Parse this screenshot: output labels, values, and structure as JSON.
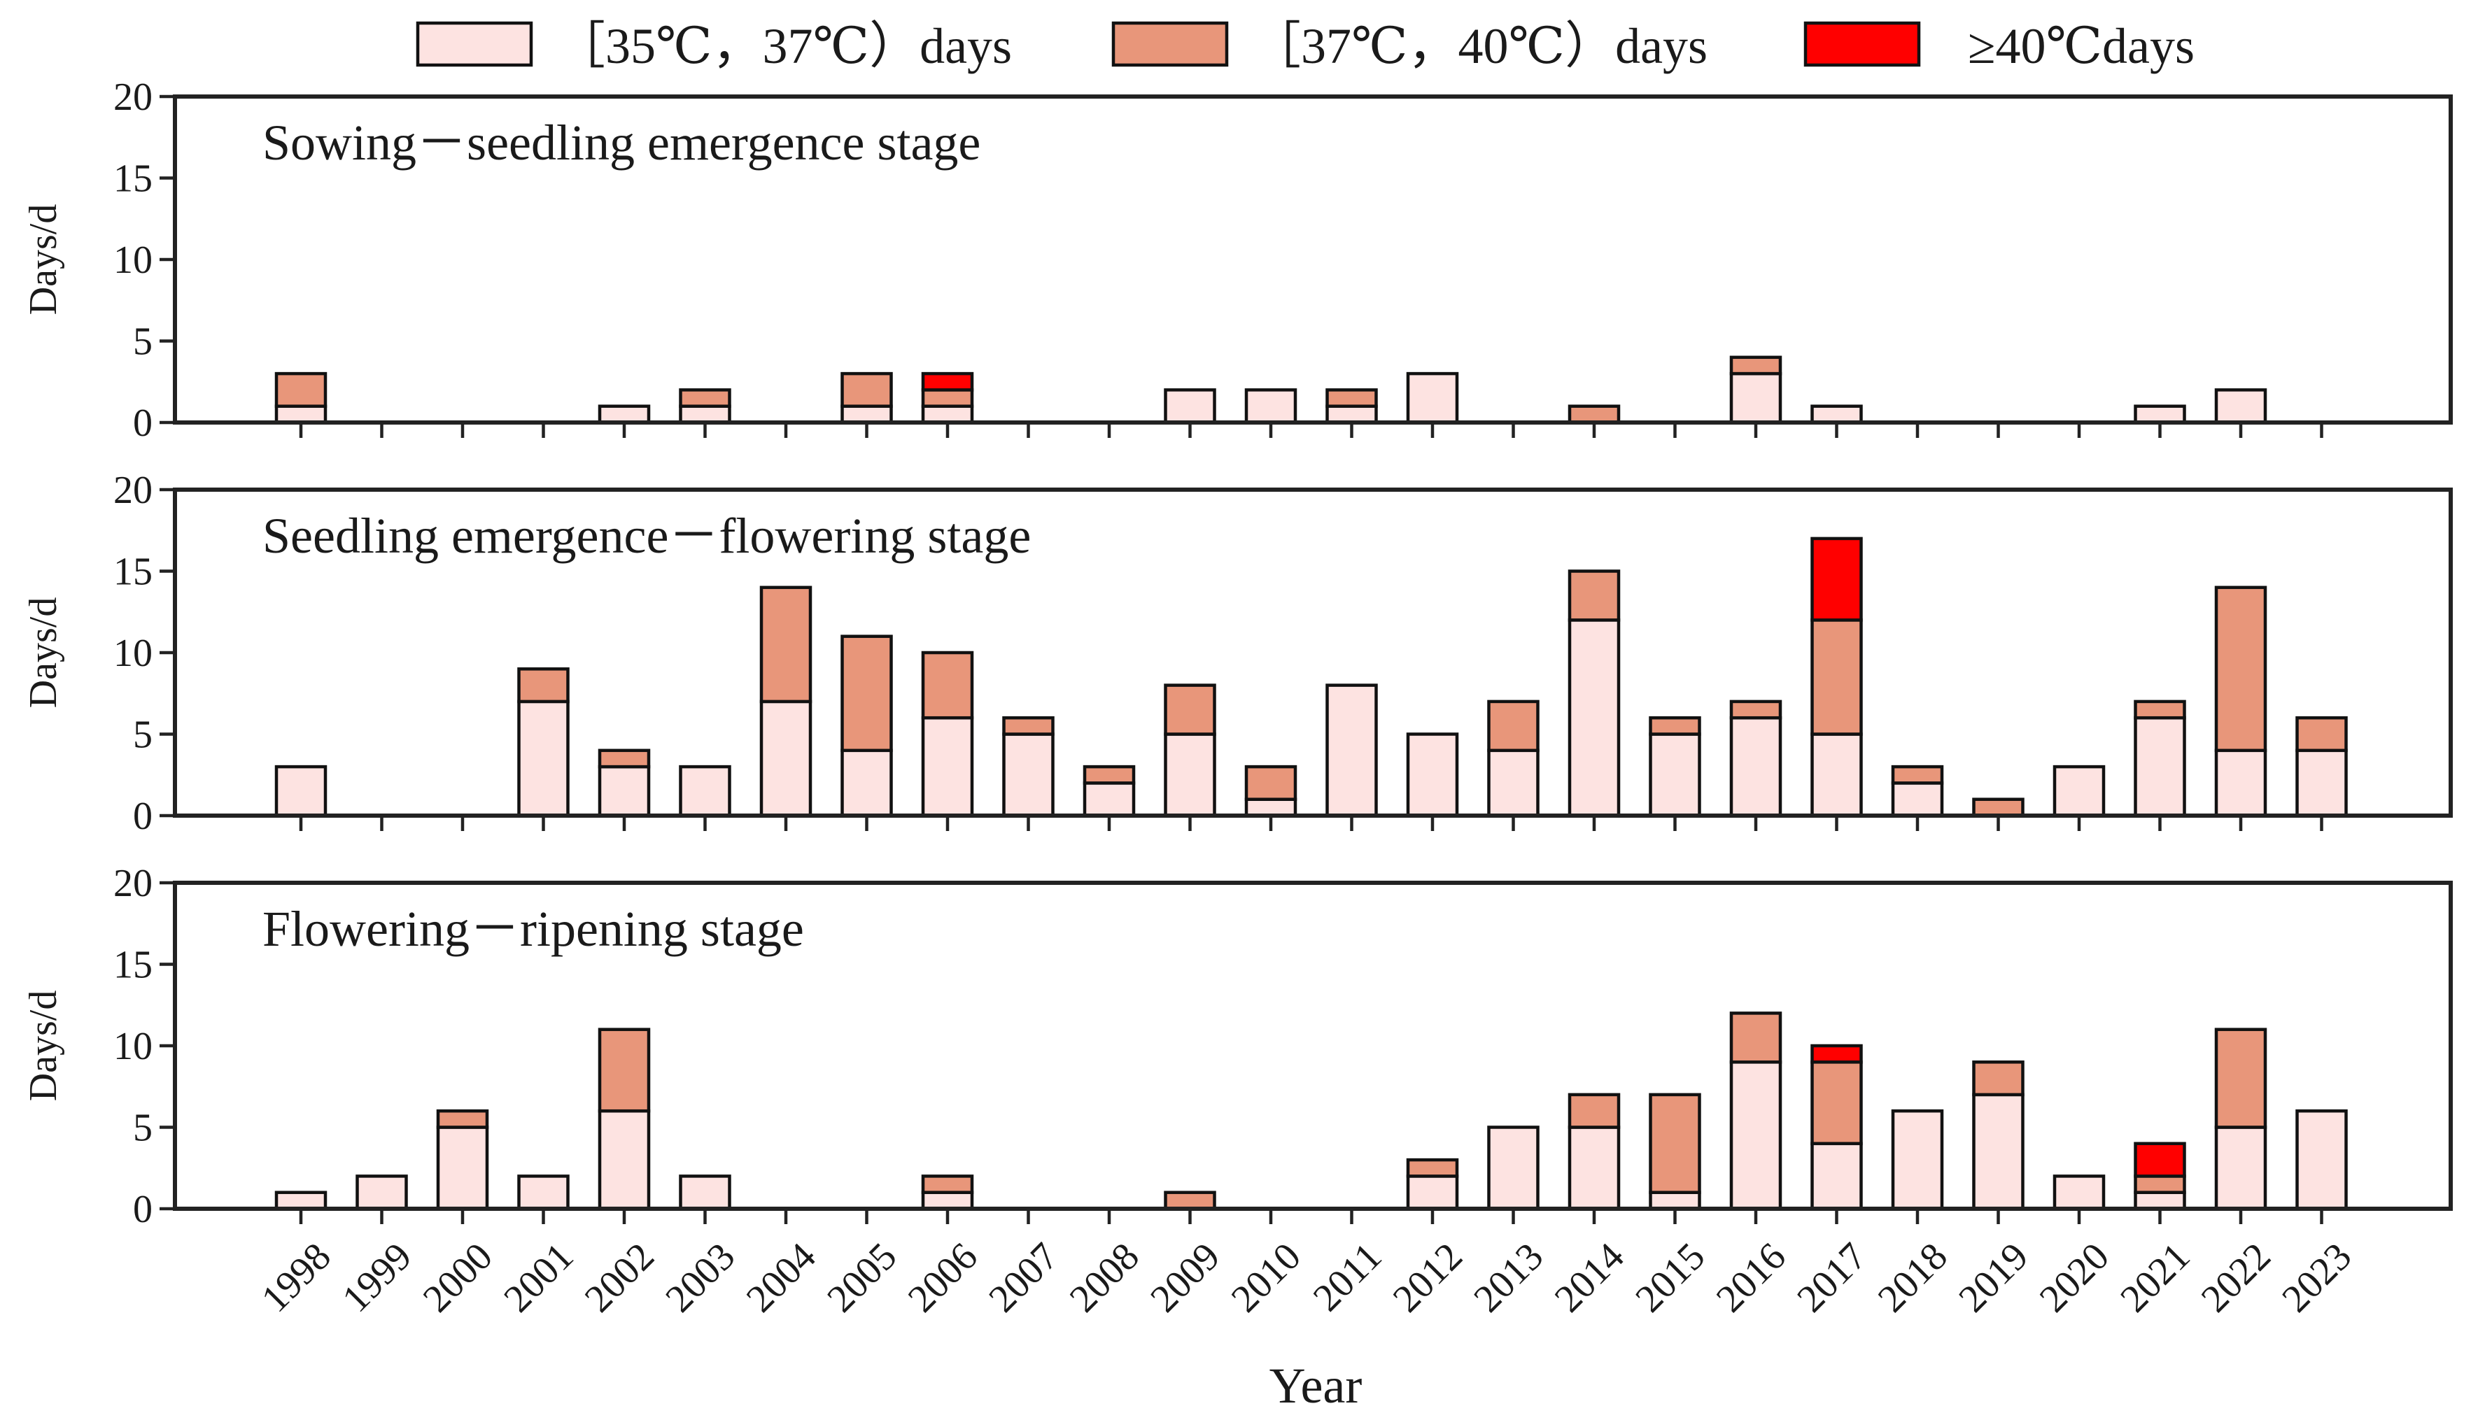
{
  "legend": [
    {
      "label": "［35℃，37℃）days",
      "color": "#FDE3E1"
    },
    {
      "label": "［37℃，40℃）days",
      "color": "#E8967A"
    },
    {
      "label": "≥40℃days",
      "color": "#FF0000"
    }
  ],
  "chart_data": {
    "type": "bar",
    "stacked": true,
    "xlabel": "Year",
    "ylabel": "Days/d",
    "ylim": [
      0,
      20
    ],
    "yticks": [
      0,
      5,
      10,
      15,
      20
    ],
    "categories": [
      "1998",
      "1999",
      "2000",
      "2001",
      "2002",
      "2003",
      "2004",
      "2005",
      "2006",
      "2007",
      "2008",
      "2009",
      "2010",
      "2011",
      "2012",
      "2013",
      "2014",
      "2015",
      "2016",
      "2017",
      "2018",
      "2019",
      "2020",
      "2021",
      "2022",
      "2023"
    ],
    "panels": [
      {
        "title": "Sowing－seedling emergence stage",
        "series": [
          {
            "name": "［35℃，37℃）days",
            "values": [
              1,
              0,
              0,
              0,
              1,
              1,
              0,
              1,
              1,
              0,
              0,
              2,
              2,
              1,
              3,
              0,
              0,
              0,
              3,
              1,
              0,
              0,
              0,
              1,
              2,
              0
            ]
          },
          {
            "name": "［37℃，40℃）days",
            "values": [
              2,
              0,
              0,
              0,
              0,
              1,
              0,
              2,
              1,
              0,
              0,
              0,
              0,
              1,
              0,
              0,
              1,
              0,
              1,
              0,
              0,
              0,
              0,
              0,
              0,
              0
            ]
          },
          {
            "name": "≥40℃days",
            "values": [
              0,
              0,
              0,
              0,
              0,
              0,
              0,
              0,
              1,
              0,
              0,
              0,
              0,
              0,
              0,
              0,
              0,
              0,
              0,
              0,
              0,
              0,
              0,
              0,
              0,
              0
            ]
          }
        ]
      },
      {
        "title": "Seedling emergence－flowering stage",
        "series": [
          {
            "name": "［35℃，37℃）days",
            "values": [
              3,
              0,
              0,
              7,
              3,
              3,
              7,
              4,
              6,
              5,
              2,
              5,
              1,
              8,
              5,
              4,
              12,
              5,
              6,
              5,
              2,
              0,
              3,
              6,
              4,
              4
            ]
          },
          {
            "name": "［37℃，40℃）days",
            "values": [
              0,
              0,
              0,
              2,
              1,
              0,
              7,
              7,
              4,
              1,
              1,
              3,
              2,
              0,
              0,
              3,
              3,
              1,
              1,
              7,
              1,
              1,
              0,
              1,
              10,
              2
            ]
          },
          {
            "name": "≥40℃days",
            "values": [
              0,
              0,
              0,
              0,
              0,
              0,
              0,
              0,
              0,
              0,
              0,
              0,
              0,
              0,
              0,
              0,
              0,
              0,
              0,
              5,
              0,
              0,
              0,
              0,
              0,
              0
            ]
          }
        ]
      },
      {
        "title": "Flowering－ripening stage",
        "series": [
          {
            "name": "［35℃，37℃）days",
            "values": [
              1,
              2,
              5,
              2,
              6,
              2,
              0,
              0,
              1,
              0,
              0,
              0,
              0,
              0,
              2,
              5,
              5,
              1,
              9,
              4,
              6,
              7,
              2,
              1,
              5,
              6
            ]
          },
          {
            "name": "［37℃，40℃）days",
            "values": [
              0,
              0,
              1,
              0,
              5,
              0,
              0,
              0,
              1,
              0,
              0,
              1,
              0,
              0,
              1,
              0,
              2,
              6,
              3,
              5,
              0,
              2,
              0,
              1,
              6,
              0
            ]
          },
          {
            "name": "≥40℃days",
            "values": [
              0,
              0,
              0,
              0,
              0,
              0,
              0,
              0,
              0,
              0,
              0,
              0,
              0,
              0,
              0,
              0,
              0,
              0,
              0,
              1,
              0,
              0,
              0,
              2,
              0,
              0
            ]
          }
        ]
      }
    ]
  }
}
